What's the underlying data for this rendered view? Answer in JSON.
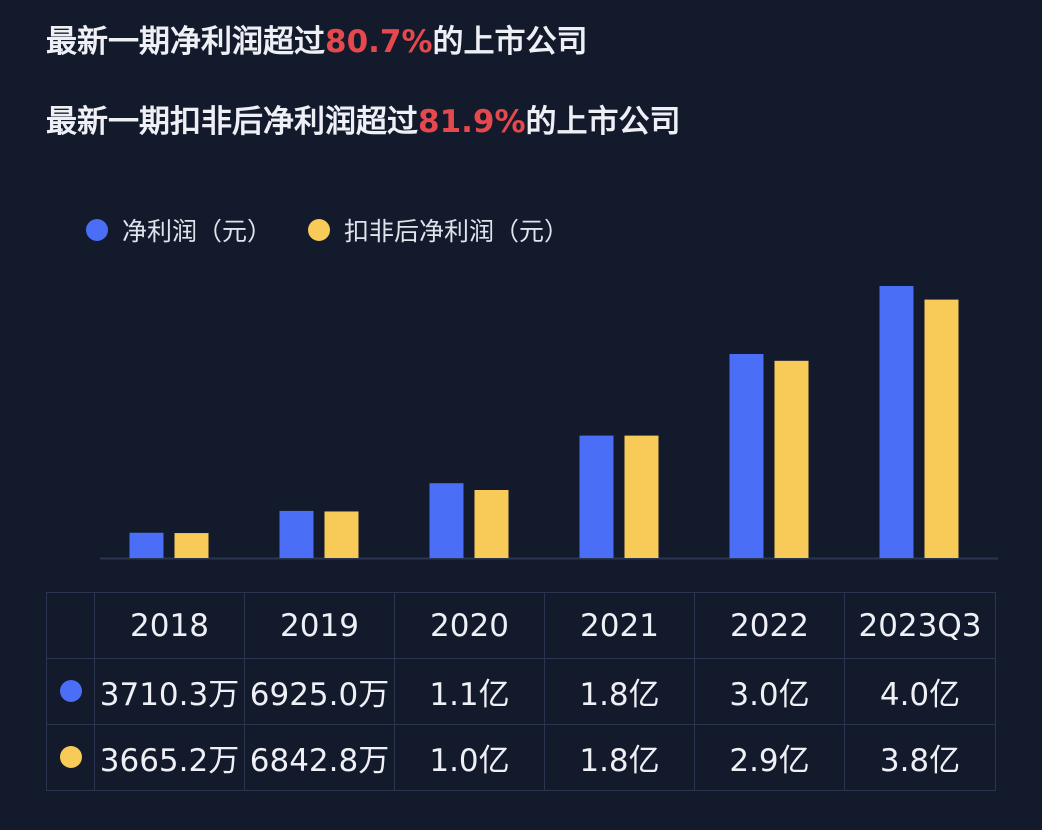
{
  "headlines": [
    {
      "prefix": "最新一期净利润超过",
      "highlight": "80.7%",
      "suffix": "的上市公司"
    },
    {
      "prefix": "最新一期扣非后净利润超过",
      "highlight": "81.9%",
      "suffix": "的上市公司"
    }
  ],
  "colors": {
    "net_profit": "#4a6ef5",
    "deducted_net_profit": "#f8cb58",
    "highlight": "#e5484d",
    "background": "#131a2b"
  },
  "chart_data": {
    "type": "bar",
    "categories": [
      "2018",
      "2019",
      "2020",
      "2021",
      "2022",
      "2023Q3"
    ],
    "series": [
      {
        "name": "净利润（元）",
        "values": [
          37103000,
          69250000,
          110000000,
          180000000,
          300000000,
          400000000
        ],
        "labels": [
          "3710.3万",
          "6925.0万",
          "1.1亿",
          "1.8亿",
          "3.0亿",
          "4.0亿"
        ]
      },
      {
        "name": "扣非后净利润（元）",
        "values": [
          36652000,
          68428000,
          100000000,
          180000000,
          290000000,
          380000000
        ],
        "labels": [
          "3665.2万",
          "6842.8万",
          "1.0亿",
          "1.8亿",
          "2.9亿",
          "3.8亿"
        ]
      }
    ],
    "ylim": [
      0,
      400000000
    ],
    "legend_position": "top-left",
    "grid": false
  }
}
